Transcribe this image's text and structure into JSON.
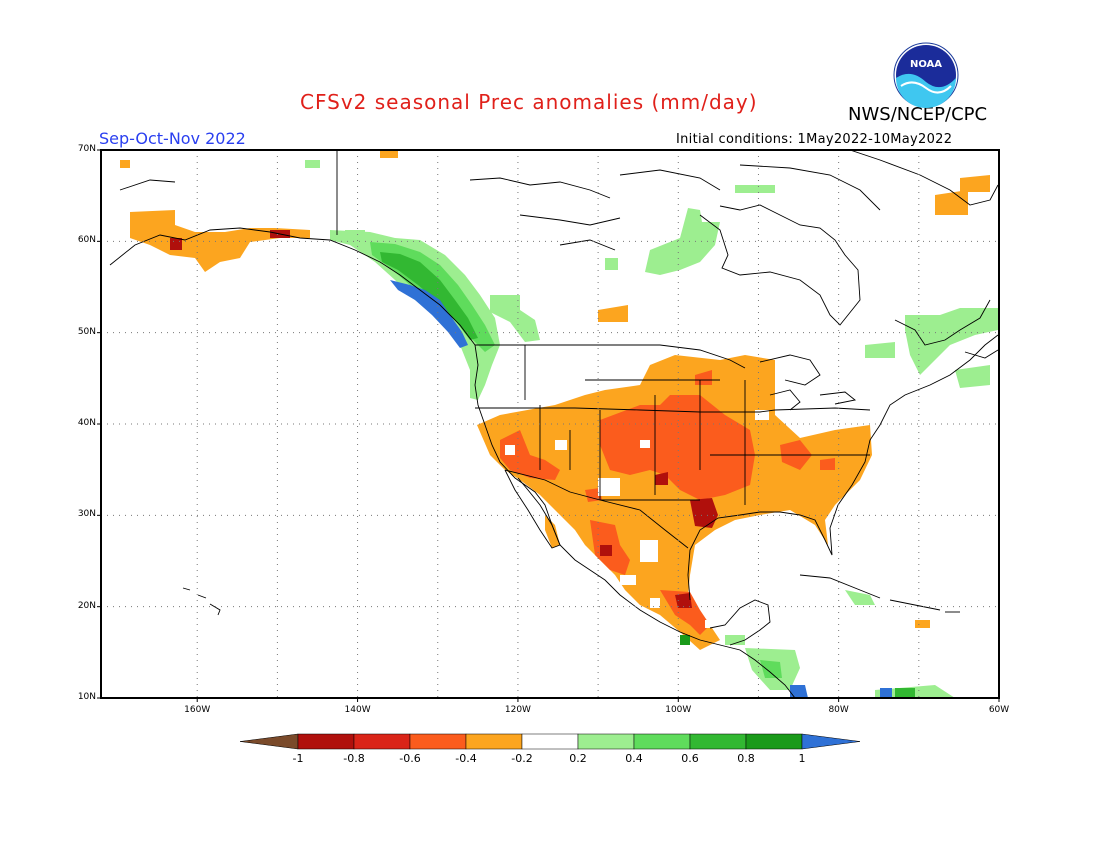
{
  "header": {
    "title": "CFSv2 seasonal Prec anomalies (mm/day)",
    "agency": "NWS/NCEP/CPC",
    "season": "Sep-Oct-Nov 2022",
    "initial_conditions": "Initial conditions: 1May2022-10May2022",
    "logo_text": "NOAA"
  },
  "map": {
    "lat_labels": [
      "70N",
      "60N",
      "50N",
      "40N",
      "30N",
      "20N",
      "10N"
    ],
    "lon_labels": [
      "160W",
      "140W",
      "120W",
      "100W",
      "80W",
      "60W"
    ],
    "lon_range": [
      -172,
      -60
    ],
    "lat_range": [
      10,
      70
    ]
  },
  "colorbar": {
    "labels": [
      "-1",
      "-0.8",
      "-0.6",
      "-0.4",
      "-0.2",
      "0.2",
      "0.4",
      "0.6",
      "0.8",
      "1"
    ],
    "colors": [
      "#7a4a2a",
      "#b0100c",
      "#da2418",
      "#fb5c1d",
      "#fca51f",
      "#ffffff",
      "#9dee90",
      "#5fdc5c",
      "#32b832",
      "#1a9a1a",
      "#2f71d6"
    ]
  }
}
